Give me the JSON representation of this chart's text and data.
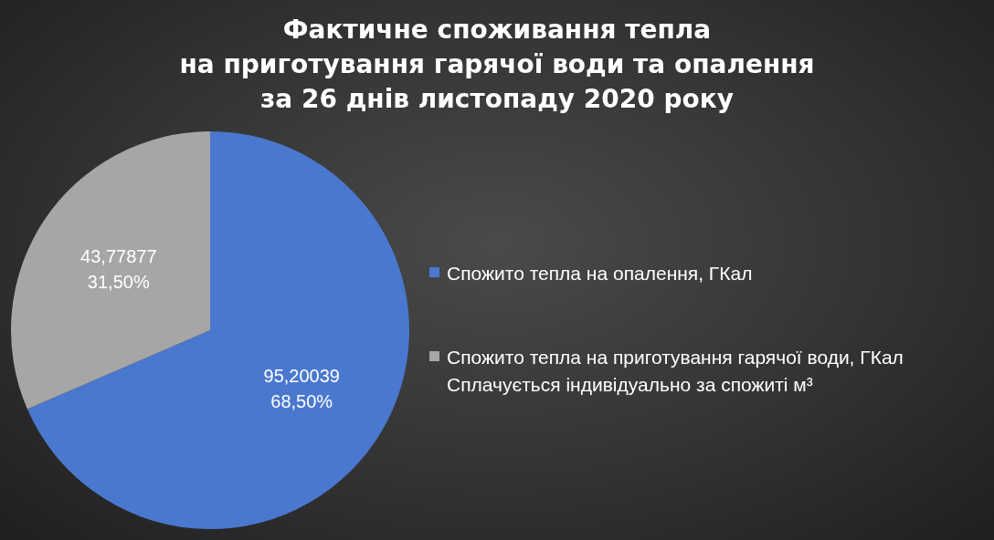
{
  "chart_data": {
    "type": "pie",
    "title": "Фактичне споживання тепла\nна приготування гарячої води та опалення\nза 26 днів листопаду 2020 року",
    "categories": [
      "Спожито тепла на опалення, ГКал",
      "Спожито тепла на приготування гарячої води, ГКал\nСплачується індивідуально за спожиті м³"
    ],
    "values": [
      68.5,
      31.5
    ],
    "colors": [
      "#4a78cf",
      "#a6a6a6"
    ],
    "value_labels": [
      "95,20039\n68,50%",
      "43,77877\n31,50%"
    ],
    "legend": "right"
  }
}
